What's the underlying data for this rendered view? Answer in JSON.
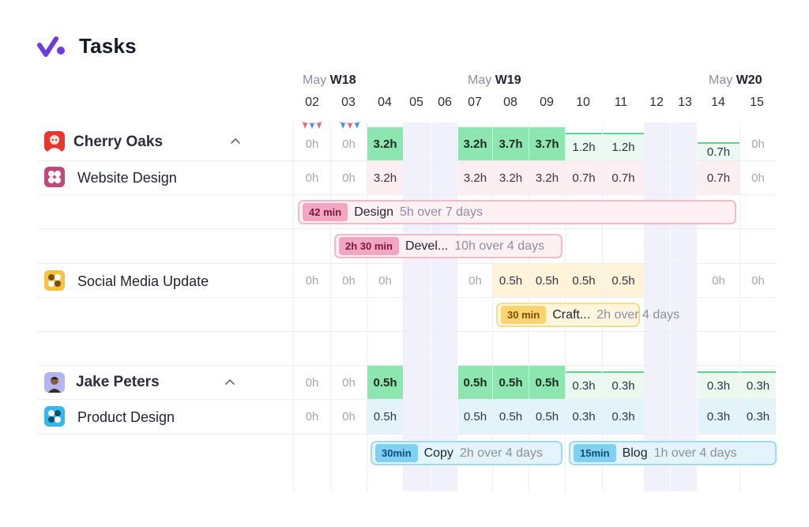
{
  "app": {
    "title": "Tasks",
    "accent": "#6d3ce0"
  },
  "weeks": [
    {
      "month": "May",
      "label": "W18"
    },
    {
      "month": "May",
      "label": "W19"
    },
    {
      "month": "May",
      "label": "W20"
    }
  ],
  "days": [
    "02",
    "03",
    "04",
    "05",
    "06",
    "07",
    "08",
    "09",
    "10",
    "11",
    "12",
    "13",
    "14",
    "15"
  ],
  "people": [
    {
      "name": "Cherry Oaks",
      "avatar": "avatar-cherry-oaks",
      "hours": [
        "0h",
        "0h",
        "3.2h",
        "",
        "",
        "3.2h",
        "3.7h",
        "3.7h",
        "1.2h",
        "1.2h",
        "",
        "",
        "0.7h",
        "0h"
      ]
    },
    {
      "name": "Jake Peters",
      "avatar": "avatar-jake-peters",
      "hours": [
        "0h",
        "0h",
        "0.5h",
        "",
        "",
        "0.5h",
        "0.5h",
        "0.5h",
        "0.3h",
        "0.3h",
        "",
        "",
        "0.3h",
        "0.3h"
      ]
    }
  ],
  "projects": [
    {
      "name": "Website Design",
      "color": "#c0497a",
      "hours": [
        "0h",
        "0h",
        "3.2h",
        "",
        "",
        "3.2h",
        "3.2h",
        "3.2h",
        "0.7h",
        "0.7h",
        "",
        "",
        "0.7h",
        "0h"
      ]
    },
    {
      "name": "Social Media Update",
      "color": "#f5c242",
      "hours": [
        "0h",
        "0h",
        "0h",
        "",
        "",
        "0h",
        "0.5h",
        "0.5h",
        "0.5h",
        "0.5h",
        "",
        "",
        "0h",
        "0h"
      ]
    },
    {
      "name": "Product Design",
      "color": "#38b6ee",
      "hours": [
        "0h",
        "0h",
        "0.5h",
        "",
        "",
        "0.5h",
        "0.5h",
        "0.5h",
        "0.3h",
        "0.3h",
        "",
        "",
        "0.3h",
        "0.3h"
      ]
    }
  ],
  "tasks": [
    {
      "badge": "42 min",
      "name": "Design",
      "summary": "5h over 7 days",
      "color": "pink"
    },
    {
      "badge": "2h 30 min",
      "name": "Devel...",
      "summary": "10h over 4 days",
      "color": "pink"
    },
    {
      "badge": "30 min",
      "name": "Craft...",
      "summary": "2h over 4 days",
      "color": "yellow"
    },
    {
      "badge": "30min",
      "name": "Copy",
      "summary": "2h over 4 days",
      "color": "blue"
    },
    {
      "badge": "15min",
      "name": "Blog",
      "summary": "1h over 4 days",
      "color": "blue"
    }
  ]
}
